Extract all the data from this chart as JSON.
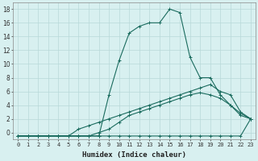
{
  "xlabel": "Humidex (Indice chaleur)",
  "x_values": [
    0,
    1,
    2,
    3,
    4,
    5,
    6,
    7,
    8,
    9,
    10,
    11,
    12,
    13,
    14,
    15,
    16,
    17,
    18,
    19,
    20,
    21,
    22,
    23
  ],
  "line1_y": [
    -0.5,
    -0.5,
    -0.5,
    -0.5,
    -0.5,
    -0.5,
    -0.5,
    -0.5,
    -0.5,
    -0.5,
    -0.5,
    -0.5,
    -0.5,
    -0.5,
    -0.5,
    -0.5,
    -0.5,
    -0.5,
    -0.5,
    -0.5,
    -0.5,
    -0.5,
    -0.5,
    2.0
  ],
  "line2_y": [
    -0.5,
    -0.5,
    -0.5,
    -0.5,
    -0.5,
    -0.5,
    -0.5,
    -0.5,
    0.0,
    0.5,
    1.5,
    2.5,
    3.0,
    3.5,
    4.0,
    4.5,
    5.0,
    5.5,
    5.8,
    5.5,
    5.0,
    4.0,
    2.8,
    2.0
  ],
  "line3_y": [
    -0.5,
    -0.5,
    -0.5,
    -0.5,
    -0.5,
    -0.5,
    0.5,
    1.0,
    1.5,
    2.0,
    2.5,
    3.0,
    3.5,
    4.0,
    4.5,
    5.0,
    5.5,
    6.0,
    6.5,
    7.0,
    6.0,
    5.5,
    3.0,
    2.0
  ],
  "line4_y": [
    -0.5,
    -0.5,
    -0.5,
    -0.5,
    -0.5,
    -0.5,
    -0.5,
    -0.5,
    -0.5,
    5.5,
    10.5,
    14.5,
    15.5,
    16.0,
    16.0,
    18.0,
    17.5,
    11.0,
    8.0,
    8.0,
    5.5,
    4.0,
    2.5,
    2.0
  ],
  "line_color": "#1a6b5e",
  "bg_color": "#d8f0f0",
  "grid_color": "#b8d8d8",
  "ylim": [
    -1,
    19
  ],
  "xlim": [
    -0.5,
    23.5
  ],
  "yticks": [
    0,
    2,
    4,
    6,
    8,
    10,
    12,
    14,
    16,
    18
  ],
  "xticks": [
    0,
    1,
    2,
    3,
    4,
    5,
    6,
    7,
    8,
    9,
    10,
    11,
    12,
    13,
    14,
    15,
    16,
    17,
    18,
    19,
    20,
    21,
    22,
    23
  ],
  "marker": "+",
  "markersize": 2.5,
  "linewidth": 0.8,
  "tick_fontsize": 5.0,
  "xlabel_fontsize": 6.5
}
